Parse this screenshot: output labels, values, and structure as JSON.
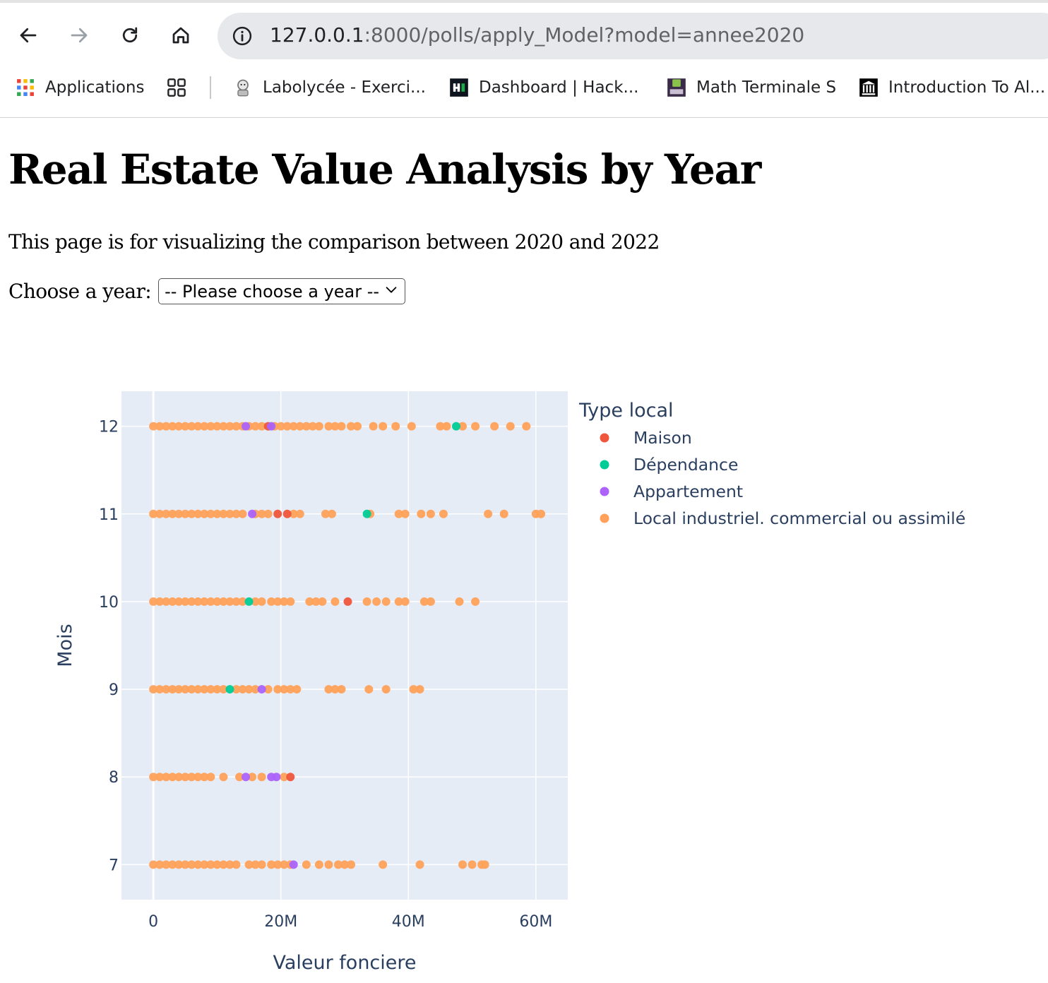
{
  "browser": {
    "url_host": "127.0.0.1",
    "url_rest": ":8000/polls/apply_Model?model=annee2020",
    "bookmarks": [
      {
        "label": "Applications",
        "icon": "apps-grid-icon"
      },
      {
        "label": "Labolycée - Exerci...",
        "icon": "labolycee-favicon"
      },
      {
        "label": "Dashboard | Hack...",
        "icon": "hackerrank-favicon"
      },
      {
        "label": "Math Terminale S",
        "icon": "lycee-favicon"
      },
      {
        "label": "Introduction To Al...",
        "icon": "institution-favicon"
      }
    ]
  },
  "page": {
    "title": "Real Estate Value Analysis by Year",
    "description": "This page is for visualizing the comparison between 2020 and 2022",
    "year_label": "Choose a year:",
    "year_select_value": "-- Please choose a year --"
  },
  "chart_data": {
    "type": "scatter",
    "title": "",
    "xlabel": "Valeur fonciere",
    "ylabel": "Mois",
    "xlim": [
      -5000000,
      65000000
    ],
    "ylim": [
      6.6,
      12.4
    ],
    "x_ticks": [
      0,
      20000000,
      40000000,
      60000000
    ],
    "x_tick_labels": [
      "0",
      "20M",
      "40M",
      "60M"
    ],
    "y_ticks": [
      7,
      8,
      9,
      10,
      11,
      12
    ],
    "y_tick_labels": [
      "7",
      "8",
      "9",
      "10",
      "11",
      "12"
    ],
    "grid": true,
    "legend_title": "Type local",
    "legend_position": "right",
    "series": [
      {
        "name": "Maison",
        "color": "#EF553B",
        "points": [
          [
            30500000,
            10
          ],
          [
            21500000,
            8
          ],
          [
            19500000,
            11
          ],
          [
            21000000,
            11
          ],
          [
            18000000,
            12
          ]
        ]
      },
      {
        "name": "Dépendance",
        "color": "#00CC96",
        "points": [
          [
            47500000,
            12
          ],
          [
            33500000,
            11
          ],
          [
            15000000,
            10
          ],
          [
            12000000,
            9
          ]
        ]
      },
      {
        "name": "Appartement",
        "color": "#AB63FA",
        "points": [
          [
            14500000,
            8
          ],
          [
            18500000,
            8
          ],
          [
            19300000,
            8
          ],
          [
            14500000,
            12
          ],
          [
            18500000,
            12
          ],
          [
            15500000,
            11
          ],
          [
            22000000,
            7
          ],
          [
            17000000,
            9
          ]
        ]
      },
      {
        "name": "Local industriel. commercial ou assimilé",
        "color": "#FFA15A",
        "points": [
          [
            0,
            12
          ],
          [
            1000000,
            12
          ],
          [
            2000000,
            12
          ],
          [
            3000000,
            12
          ],
          [
            4000000,
            12
          ],
          [
            5000000,
            12
          ],
          [
            6000000,
            12
          ],
          [
            7000000,
            12
          ],
          [
            8000000,
            12
          ],
          [
            9000000,
            12
          ],
          [
            10000000,
            12
          ],
          [
            11000000,
            12
          ],
          [
            12000000,
            12
          ],
          [
            13000000,
            12
          ],
          [
            14000000,
            12
          ],
          [
            15000000,
            12
          ],
          [
            16000000,
            12
          ],
          [
            17000000,
            12
          ],
          [
            19000000,
            12
          ],
          [
            20000000,
            12
          ],
          [
            21000000,
            12
          ],
          [
            22000000,
            12
          ],
          [
            23000000,
            12
          ],
          [
            24000000,
            12
          ],
          [
            25000000,
            12
          ],
          [
            26000000,
            12
          ],
          [
            27500000,
            12
          ],
          [
            28500000,
            12
          ],
          [
            29500000,
            12
          ],
          [
            31000000,
            12
          ],
          [
            32000000,
            12
          ],
          [
            34500000,
            12
          ],
          [
            36000000,
            12
          ],
          [
            38000000,
            12
          ],
          [
            40500000,
            12
          ],
          [
            45000000,
            12
          ],
          [
            46000000,
            12
          ],
          [
            48500000,
            12
          ],
          [
            50500000,
            12
          ],
          [
            53500000,
            12
          ],
          [
            56000000,
            12
          ],
          [
            58500000,
            12
          ],
          [
            0,
            11
          ],
          [
            1000000,
            11
          ],
          [
            2000000,
            11
          ],
          [
            3000000,
            11
          ],
          [
            4000000,
            11
          ],
          [
            5000000,
            11
          ],
          [
            6000000,
            11
          ],
          [
            7000000,
            11
          ],
          [
            8000000,
            11
          ],
          [
            9000000,
            11
          ],
          [
            10000000,
            11
          ],
          [
            11000000,
            11
          ],
          [
            12000000,
            11
          ],
          [
            13000000,
            11
          ],
          [
            14000000,
            11
          ],
          [
            16000000,
            11
          ],
          [
            17000000,
            11
          ],
          [
            18000000,
            11
          ],
          [
            22000000,
            11
          ],
          [
            23000000,
            11
          ],
          [
            27000000,
            11
          ],
          [
            28000000,
            11
          ],
          [
            34000000,
            11
          ],
          [
            38500000,
            11
          ],
          [
            39500000,
            11
          ],
          [
            42000000,
            11
          ],
          [
            43500000,
            11
          ],
          [
            45500000,
            11
          ],
          [
            52500000,
            11
          ],
          [
            55000000,
            11
          ],
          [
            60000000,
            11
          ],
          [
            60800000,
            11
          ],
          [
            0,
            10
          ],
          [
            1000000,
            10
          ],
          [
            2000000,
            10
          ],
          [
            3000000,
            10
          ],
          [
            4000000,
            10
          ],
          [
            5000000,
            10
          ],
          [
            6000000,
            10
          ],
          [
            7000000,
            10
          ],
          [
            8000000,
            10
          ],
          [
            9000000,
            10
          ],
          [
            10000000,
            10
          ],
          [
            11000000,
            10
          ],
          [
            12000000,
            10
          ],
          [
            13000000,
            10
          ],
          [
            14000000,
            10
          ],
          [
            16000000,
            10
          ],
          [
            17000000,
            10
          ],
          [
            18500000,
            10
          ],
          [
            19500000,
            10
          ],
          [
            20500000,
            10
          ],
          [
            21500000,
            10
          ],
          [
            24500000,
            10
          ],
          [
            25500000,
            10
          ],
          [
            26500000,
            10
          ],
          [
            28500000,
            10
          ],
          [
            33500000,
            10
          ],
          [
            35000000,
            10
          ],
          [
            36500000,
            10
          ],
          [
            38500000,
            10
          ],
          [
            39500000,
            10
          ],
          [
            42500000,
            10
          ],
          [
            43500000,
            10
          ],
          [
            48000000,
            10
          ],
          [
            50500000,
            10
          ],
          [
            0,
            9
          ],
          [
            1000000,
            9
          ],
          [
            2000000,
            9
          ],
          [
            3000000,
            9
          ],
          [
            4000000,
            9
          ],
          [
            5000000,
            9
          ],
          [
            6000000,
            9
          ],
          [
            7000000,
            9
          ],
          [
            8000000,
            9
          ],
          [
            9000000,
            9
          ],
          [
            10000000,
            9
          ],
          [
            11000000,
            9
          ],
          [
            13000000,
            9
          ],
          [
            14000000,
            9
          ],
          [
            15000000,
            9
          ],
          [
            16000000,
            9
          ],
          [
            18000000,
            9
          ],
          [
            19500000,
            9
          ],
          [
            20500000,
            9
          ],
          [
            21500000,
            9
          ],
          [
            22500000,
            9
          ],
          [
            27500000,
            9
          ],
          [
            28500000,
            9
          ],
          [
            29500000,
            9
          ],
          [
            33800000,
            9
          ],
          [
            36500000,
            9
          ],
          [
            40800000,
            9
          ],
          [
            41800000,
            9
          ],
          [
            0,
            8
          ],
          [
            1000000,
            8
          ],
          [
            2000000,
            8
          ],
          [
            3000000,
            8
          ],
          [
            4000000,
            8
          ],
          [
            5000000,
            8
          ],
          [
            6000000,
            8
          ],
          [
            7000000,
            8
          ],
          [
            8000000,
            8
          ],
          [
            9000000,
            8
          ],
          [
            11000000,
            8
          ],
          [
            13500000,
            8
          ],
          [
            15500000,
            8
          ],
          [
            17000000,
            8
          ],
          [
            20500000,
            8
          ],
          [
            0,
            7
          ],
          [
            1000000,
            7
          ],
          [
            2000000,
            7
          ],
          [
            3000000,
            7
          ],
          [
            4000000,
            7
          ],
          [
            5000000,
            7
          ],
          [
            6000000,
            7
          ],
          [
            7000000,
            7
          ],
          [
            8000000,
            7
          ],
          [
            9000000,
            7
          ],
          [
            10000000,
            7
          ],
          [
            11000000,
            7
          ],
          [
            12000000,
            7
          ],
          [
            13000000,
            7
          ],
          [
            15000000,
            7
          ],
          [
            16000000,
            7
          ],
          [
            17000000,
            7
          ],
          [
            18500000,
            7
          ],
          [
            19500000,
            7
          ],
          [
            20500000,
            7
          ],
          [
            21500000,
            7
          ],
          [
            24000000,
            7
          ],
          [
            26000000,
            7
          ],
          [
            27500000,
            7
          ],
          [
            29000000,
            7
          ],
          [
            30000000,
            7
          ],
          [
            31000000,
            7
          ],
          [
            36000000,
            7
          ],
          [
            41800000,
            7
          ],
          [
            48500000,
            7
          ],
          [
            50000000,
            7
          ],
          [
            51500000,
            7
          ],
          [
            52000000,
            7
          ]
        ]
      }
    ]
  }
}
